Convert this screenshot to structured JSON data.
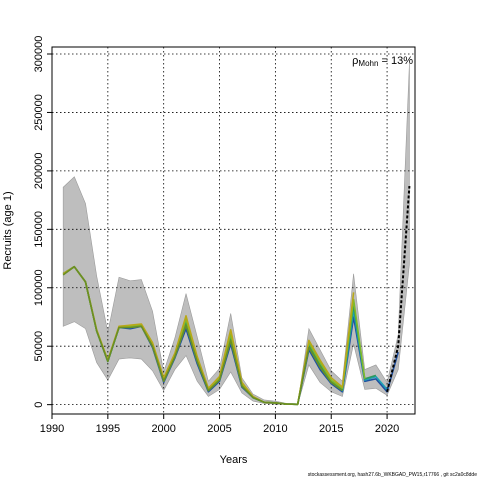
{
  "chart_data": {
    "type": "line",
    "xlabel": "Years",
    "ylabel": "Recruits (age 1)",
    "xlim": [
      1990,
      2022.5
    ],
    "ylim": [
      0,
      300000
    ],
    "x_ticks": [
      1990,
      1995,
      2000,
      2005,
      2010,
      2015,
      2020
    ],
    "y_ticks": [
      0,
      50000,
      100000,
      150000,
      200000,
      250000,
      300000
    ],
    "grid": true,
    "annotation": {
      "symbol": "ρ",
      "subscript": "Mohn",
      "text": " = 13%"
    },
    "footer": "stockassessment.org, hash27.6b_WKBGAD_PW15,r17766 , git sc2a0c8dde",
    "confidence_band": {
      "x": [
        1991,
        1992,
        1993,
        1994,
        1995,
        1996,
        1997,
        1998,
        1999,
        2000,
        2001,
        2002,
        2003,
        2004,
        2005,
        2006,
        2007,
        2008,
        2009,
        2010,
        2011,
        2012,
        2013,
        2014,
        2015,
        2016,
        2017,
        2018,
        2019,
        2020,
        2021,
        2022
      ],
      "upper": [
        186000,
        195000,
        172000,
        110000,
        62000,
        109000,
        106000,
        107000,
        80000,
        28000,
        57000,
        95000,
        58000,
        20000,
        31000,
        78000,
        23000,
        9000,
        4000,
        3000,
        1000,
        500,
        65000,
        47000,
        29000,
        20000,
        112000,
        30000,
        34000,
        19000,
        60000,
        292000
      ],
      "lower": [
        67000,
        71000,
        65000,
        36000,
        21000,
        39000,
        40000,
        39000,
        29000,
        12000,
        30000,
        42000,
        20000,
        7000,
        13000,
        28000,
        10000,
        3000,
        1000,
        500,
        200,
        100,
        34000,
        19000,
        11000,
        7000,
        52000,
        13000,
        14000,
        8000,
        30000,
        120000
      ]
    },
    "series": [
      {
        "color": "#1f4fa0",
        "x": [
          1991,
          1992,
          1993,
          1994,
          1995,
          1996,
          1997,
          1998,
          1999,
          2000,
          2001,
          2002,
          2003,
          2004,
          2005,
          2006,
          2007,
          2008,
          2009,
          2010,
          2011,
          2012,
          2013,
          2014,
          2015,
          2016,
          2017,
          2018,
          2019,
          2020,
          2021
        ],
        "values": [
          112000,
          118000,
          105000,
          63000,
          37000,
          66000,
          65000,
          67000,
          49000,
          19000,
          40000,
          65000,
          35000,
          11000,
          20000,
          52000,
          15000,
          6000,
          2000,
          1500,
          500,
          300,
          47000,
          30000,
          18000,
          11000,
          75000,
          20000,
          22000,
          11000,
          45000
        ]
      },
      {
        "color": "#1aa0b5",
        "x": [
          1991,
          1992,
          1993,
          1994,
          1995,
          1996,
          1997,
          1998,
          1999,
          2000,
          2001,
          2002,
          2003,
          2004,
          2005,
          2006,
          2007,
          2008,
          2009,
          2010,
          2011,
          2012,
          2013,
          2014,
          2015,
          2016,
          2017,
          2018,
          2019,
          2020
        ],
        "values": [
          112000,
          118000,
          105000,
          63000,
          37000,
          66000,
          66000,
          67000,
          50000,
          20000,
          41000,
          68000,
          37000,
          12000,
          21000,
          55000,
          16000,
          6000,
          2000,
          1500,
          500,
          300,
          49000,
          32000,
          19000,
          12000,
          81000,
          21000,
          24000,
          13000
        ]
      },
      {
        "color": "#2e9a5a",
        "x": [
          1991,
          1992,
          1993,
          1994,
          1995,
          1996,
          1997,
          1998,
          1999,
          2000,
          2001,
          2002,
          2003,
          2004,
          2005,
          2006,
          2007,
          2008,
          2009,
          2010,
          2011,
          2012,
          2013,
          2014,
          2015,
          2016,
          2017,
          2018,
          2019
        ],
        "values": [
          112000,
          118000,
          105000,
          63000,
          37000,
          66000,
          67000,
          68000,
          51000,
          21000,
          42000,
          71000,
          38000,
          12000,
          22000,
          58000,
          17000,
          6000,
          2000,
          1500,
          500,
          300,
          51000,
          34000,
          20000,
          13000,
          86000,
          22000,
          25000
        ]
      },
      {
        "color": "#7fba2b",
        "x": [
          1991,
          1992,
          1993,
          1994,
          1995,
          1996,
          1997,
          1998,
          1999,
          2000,
          2001,
          2002,
          2003,
          2004,
          2005,
          2006,
          2007,
          2008,
          2009,
          2010,
          2011,
          2012,
          2013,
          2014,
          2015,
          2016,
          2017,
          2018
        ],
        "values": [
          112000,
          118000,
          105000,
          63000,
          38000,
          66000,
          67000,
          68000,
          52000,
          22000,
          43000,
          73000,
          39000,
          13000,
          23000,
          60000,
          18000,
          6500,
          2000,
          1500,
          500,
          300,
          53000,
          36000,
          21000,
          14000,
          90000,
          22000
        ]
      },
      {
        "color": "#b8a818",
        "x": [
          1991,
          1992,
          1993,
          1994,
          1995,
          1996,
          1997,
          1998,
          1999,
          2000,
          2001,
          2002,
          2003,
          2004,
          2005,
          2006,
          2007,
          2008,
          2009,
          2010,
          2011,
          2012,
          2013,
          2014,
          2015,
          2016,
          2017
        ],
        "values": [
          112000,
          118000,
          105000,
          64000,
          38000,
          67000,
          68000,
          69000,
          53000,
          23000,
          44000,
          76000,
          41000,
          14000,
          24000,
          64000,
          19000,
          7000,
          2000,
          1500,
          500,
          300,
          55000,
          38000,
          23000,
          15000,
          96000
        ]
      },
      {
        "color": "#6b8e23",
        "x": [
          1991,
          1992,
          1993,
          1994,
          1995,
          1996,
          1997,
          1998,
          1999,
          2000,
          2001,
          2002,
          2003,
          2004,
          2005,
          2006,
          2007,
          2008,
          2009,
          2010,
          2011,
          2012,
          2013,
          2014,
          2015,
          2016
        ],
        "values": [
          111000,
          118000,
          105000,
          63000,
          37000,
          66000,
          66000,
          67000,
          50000,
          20000,
          41000,
          68000,
          37000,
          12000,
          21000,
          55000,
          16000,
          6000,
          2000,
          1500,
          500,
          300,
          49000,
          32000,
          19000,
          12000
        ]
      },
      {
        "color": "#000000",
        "dashed": true,
        "x": [
          2020,
          2021,
          2022
        ],
        "values": [
          11000,
          50000,
          187000
        ]
      }
    ]
  }
}
